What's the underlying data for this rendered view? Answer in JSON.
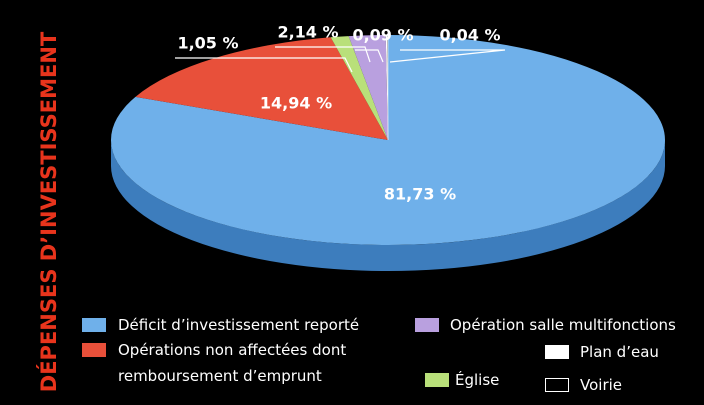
{
  "chart_data": {
    "type": "pie",
    "title": "DÉPENSES D’INVESTISSEMENT",
    "categories": [
      "Déficit d’investissement reporté",
      "Opérations non affectées dont remboursement d’emprunt",
      "Église",
      "Opération salle multifonctions",
      "Plan d’eau",
      "Voirie"
    ],
    "values": [
      81.73,
      14.94,
      1.05,
      2.14,
      0.09,
      0.04
    ],
    "value_labels": [
      "81,73 %",
      "14,94 %",
      "1,05 %",
      "2,14 %",
      "0,09 %",
      "0,04 %"
    ],
    "colors": [
      "#6fb0ea",
      "#e8503a",
      "#b9e07a",
      "#b9a0df",
      "#ffffff",
      "#000000"
    ]
  }
}
